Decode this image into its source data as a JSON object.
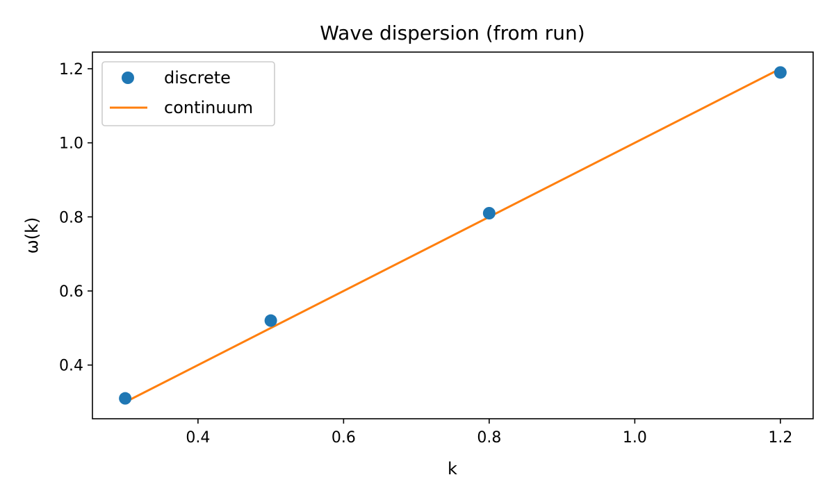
{
  "chart_data": {
    "type": "scatter",
    "title": "Wave dispersion (from run)",
    "xlabel": "k",
    "ylabel": "ω(k)",
    "xlim": [
      0.255,
      1.245
    ],
    "ylim": [
      0.255,
      1.245
    ],
    "xticks": [
      0.4,
      0.6,
      0.8,
      1.0,
      1.2
    ],
    "yticks": [
      0.4,
      0.6,
      0.8,
      1.0,
      1.2
    ],
    "xtick_labels": [
      "0.4",
      "0.6",
      "0.8",
      "1.0",
      "1.2"
    ],
    "ytick_labels": [
      "0.4",
      "0.6",
      "0.8",
      "1.0",
      "1.2"
    ],
    "grid": false,
    "legend_position": "top-left",
    "series": [
      {
        "name": "discrete",
        "kind": "scatter",
        "color": "#1f77b4",
        "x": [
          0.3,
          0.5,
          0.8,
          1.2
        ],
        "y": [
          0.31,
          0.52,
          0.81,
          1.19
        ]
      },
      {
        "name": "continuum",
        "kind": "line",
        "color": "#ff7f0e",
        "x": [
          0.3,
          1.2
        ],
        "y": [
          0.3,
          1.2
        ]
      }
    ]
  }
}
